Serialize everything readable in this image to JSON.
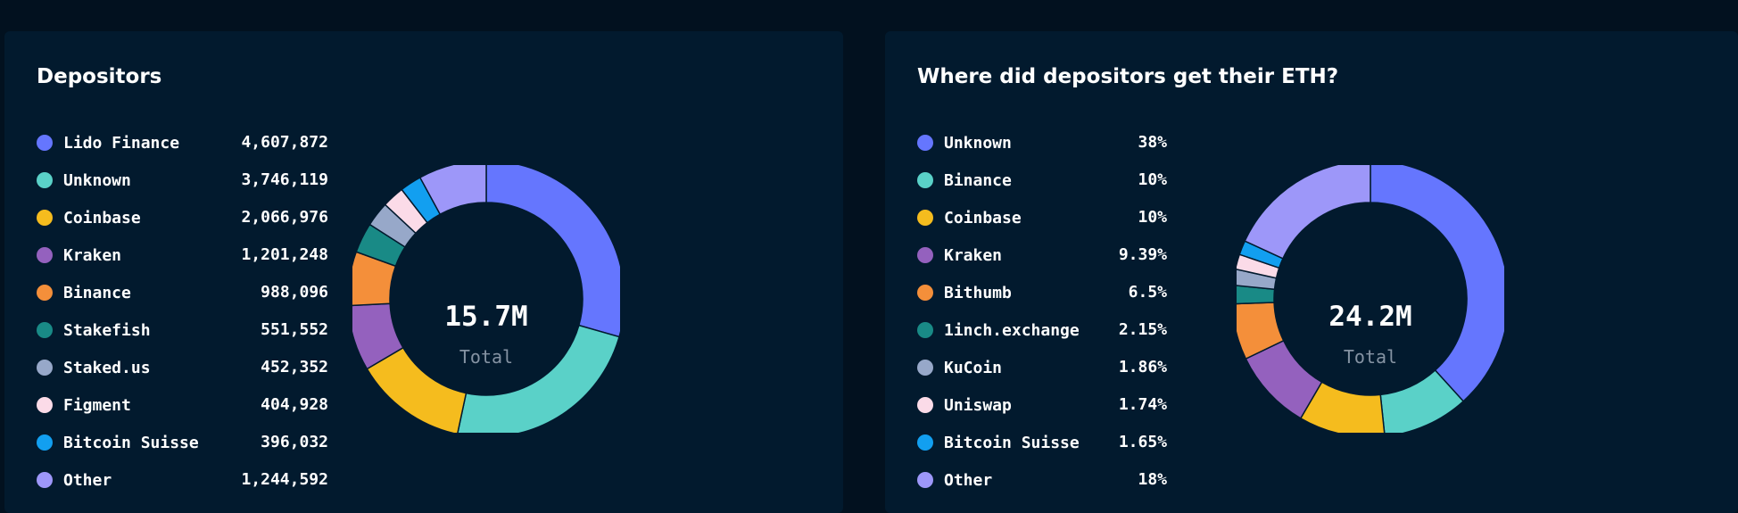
{
  "chart_data": [
    {
      "type": "pie",
      "title": "Depositors",
      "center_value": "15.7M",
      "center_label": "Total",
      "categories": [
        "Lido Finance",
        "Unknown",
        "Coinbase",
        "Kraken",
        "Binance",
        "Stakefish",
        "Staked.us",
        "Figment",
        "Bitcoin Suisse",
        "Other"
      ],
      "values": [
        4607872,
        3746119,
        2066976,
        1201248,
        988096,
        551552,
        452352,
        404928,
        396032,
        1244592
      ],
      "value_labels": [
        "4,607,872",
        "3,746,119",
        "2,066,976",
        "1,201,248",
        "988,096",
        "551,552",
        "452,352",
        "404,928",
        "396,032",
        "1,244,592"
      ],
      "colors": [
        "#6576fe",
        "#5ad1c8",
        "#f5bc1e",
        "#9461be",
        "#f48f3a",
        "#198a86",
        "#97a8c9",
        "#fbdbe8",
        "#129ff0",
        "#9d97f9"
      ],
      "legend": "left"
    },
    {
      "type": "pie",
      "title": "Where did depositors get their ETH?",
      "center_value": "24.2M",
      "center_label": "Total",
      "categories": [
        "Unknown",
        "Binance",
        "Coinbase",
        "Kraken",
        "Bithumb",
        "1inch.exchange",
        "KuCoin",
        "Uniswap",
        "Bitcoin Suisse",
        "Other"
      ],
      "values": [
        38,
        10,
        10,
        9.39,
        6.5,
        2.15,
        1.86,
        1.74,
        1.65,
        18
      ],
      "value_labels": [
        "38%",
        "10%",
        "10%",
        "9.39%",
        "6.5%",
        "2.15%",
        "1.86%",
        "1.74%",
        "1.65%",
        "18%"
      ],
      "colors": [
        "#6576fe",
        "#5ad1c8",
        "#f5bc1e",
        "#9461be",
        "#f48f3a",
        "#198a86",
        "#97a8c9",
        "#fbdbe8",
        "#129ff0",
        "#9d97f9"
      ],
      "legend": "left"
    }
  ]
}
